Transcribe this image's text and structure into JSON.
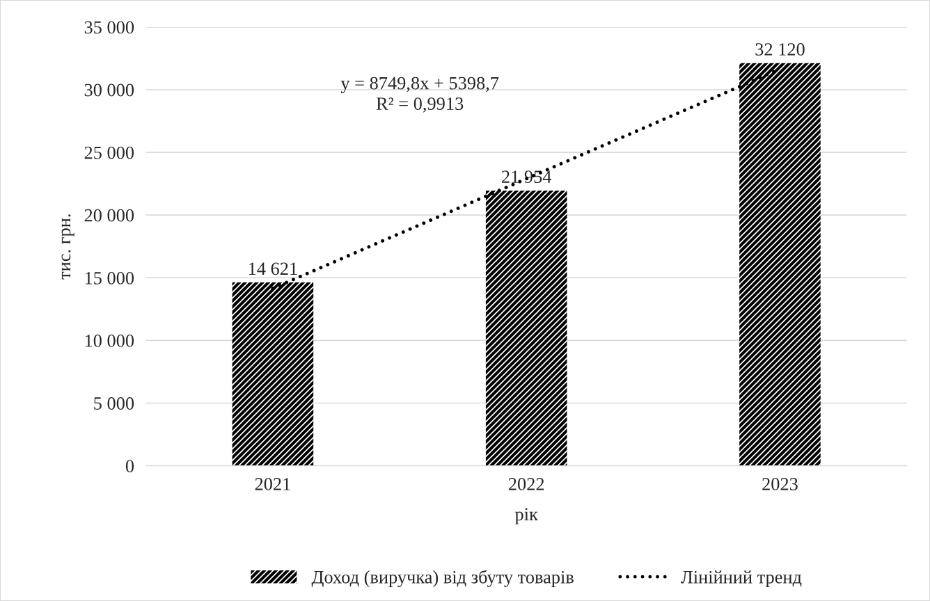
{
  "chart_data": {
    "type": "bar",
    "xlabel": "рік",
    "ylabel": "тис. грн.",
    "categories": [
      "2021",
      "2022",
      "2023"
    ],
    "series": [
      {
        "name": "Доход (виручка) від збуту товарів",
        "color": "#000000",
        "values": [
          14621,
          21954,
          32120
        ],
        "value_labels": [
          "14 621",
          "21 954",
          "32 120"
        ]
      },
      {
        "name": "Лінійний тренд",
        "type": "line",
        "color": "#000000",
        "line_style": "dotted",
        "values": [
          14150,
          22900,
          31650
        ]
      }
    ],
    "annotations": [
      "y = 8749,8x + 5398,7\nR² = 0,9913"
    ],
    "ylim": [
      0,
      35000
    ],
    "yticks": [
      {
        "value": 0,
        "label": "0"
      },
      {
        "value": 5000,
        "label": "5 000"
      },
      {
        "value": 10000,
        "label": "10 000"
      },
      {
        "value": 15000,
        "label": "15 000"
      },
      {
        "value": 20000,
        "label": "20 000"
      },
      {
        "value": 25000,
        "label": "25 000"
      },
      {
        "value": 30000,
        "label": "30 000"
      },
      {
        "value": 35000,
        "label": "35 000"
      }
    ],
    "grid": "y",
    "legend": "bottom"
  }
}
